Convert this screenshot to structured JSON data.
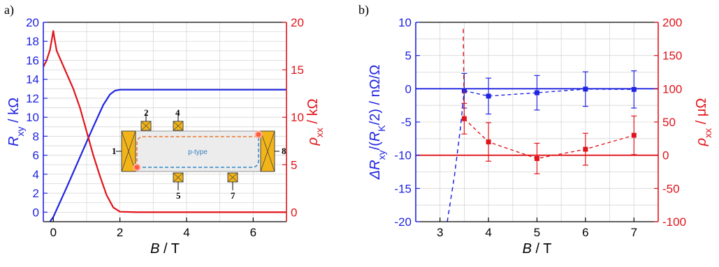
{
  "chart_data": [
    {
      "panel_label": "a)",
      "type": "line",
      "xlabel": "B / T",
      "xlim": [
        -0.3,
        7
      ],
      "xticks": [
        0,
        2,
        4,
        6
      ],
      "ylabel_left": "R_xy / kΩ",
      "ylim_left": [
        -1,
        20
      ],
      "yticks_left": [
        0,
        2,
        4,
        6,
        8,
        10,
        12,
        14,
        16,
        18,
        20
      ],
      "ylabel_right": "ρ_xx / kΩ",
      "ylim_right": [
        -1,
        20
      ],
      "yticks_right": [
        0,
        5,
        10,
        15,
        20
      ],
      "grid": true,
      "colors": {
        "left_axis": "#1f24e0",
        "right_axis": "#e0141b"
      },
      "series": [
        {
          "axis": "left",
          "color": "#1f24e0",
          "x": [
            -0.3,
            0,
            0.4,
            0.8,
            1.2,
            1.5,
            1.7,
            1.85,
            2.0,
            2.5,
            4,
            7
          ],
          "y": [
            -2.0,
            -0.5,
            2.6,
            5.8,
            9.0,
            11.3,
            12.4,
            12.8,
            12.9,
            12.9,
            12.9,
            12.9
          ]
        },
        {
          "axis": "right",
          "color": "#e0141b",
          "x": [
            -0.3,
            -0.2,
            -0.1,
            -0.03,
            0,
            0.03,
            0.1,
            0.2,
            0.4,
            0.6,
            0.8,
            1.0,
            1.2,
            1.4,
            1.6,
            1.8,
            2.0,
            2.5,
            4,
            7
          ],
          "y": [
            15.3,
            16.0,
            17.1,
            18.5,
            19.1,
            18.4,
            17.0,
            16.2,
            14.6,
            13.0,
            11.0,
            8.5,
            6.0,
            3.8,
            1.8,
            0.5,
            0.05,
            0,
            0,
            0
          ]
        }
      ],
      "inset": {
        "region_label": "p-type",
        "contacts": [
          "1",
          "2",
          "4",
          "5",
          "7",
          "8"
        ]
      }
    },
    {
      "panel_label": "b)",
      "type": "scatter",
      "xlabel": "B / T",
      "xlim": [
        2.5,
        7.5
      ],
      "xticks": [
        3,
        4,
        5,
        6,
        7
      ],
      "ylabel_left": "ΔR_xy/(R_K/2)  /  nΩ/Ω",
      "ylim_left": [
        -20,
        10
      ],
      "yticks_left": [
        -20,
        -15,
        -10,
        -5,
        0,
        5,
        10
      ],
      "ylabel_right": "ρ_xx / μΩ",
      "ylim_right": [
        -100,
        200
      ],
      "yticks_right": [
        -100,
        -50,
        0,
        50,
        100,
        150,
        200
      ],
      "grid": true,
      "colors": {
        "left_axis": "#1f24e0",
        "right_axis": "#e0141b"
      },
      "hlines": [
        {
          "axis": "left",
          "y": 0,
          "color": "#1f24e0"
        },
        {
          "axis": "right",
          "y": 0,
          "color": "#e0141b"
        }
      ],
      "series": [
        {
          "axis": "left",
          "color": "#1f24e0",
          "marker": "square",
          "x": [
            3.5,
            4,
            5,
            6,
            7
          ],
          "y": [
            -0.3,
            -1.1,
            -0.6,
            -0.05,
            -0.1
          ],
          "yerr": [
            2.6,
            2.7,
            2.6,
            2.6,
            2.8
          ]
        },
        {
          "axis": "right",
          "color": "#e0141b",
          "marker": "square",
          "x": [
            3.5,
            4,
            5,
            6,
            7
          ],
          "y": [
            55,
            20,
            -5,
            9,
            30
          ],
          "yerr": [
            23,
            29,
            23,
            24,
            29
          ]
        },
        {
          "axis": "left",
          "color": "#1f24e0",
          "style": "dashed",
          "x": [
            3.15,
            3.3,
            3.42,
            3.5
          ],
          "y": [
            -20,
            -13,
            -6,
            -0.3
          ]
        },
        {
          "axis": "right",
          "color": "#e0141b",
          "style": "dashed",
          "x": [
            3.48,
            3.49,
            3.5
          ],
          "y": [
            190,
            120,
            55
          ]
        }
      ]
    }
  ]
}
